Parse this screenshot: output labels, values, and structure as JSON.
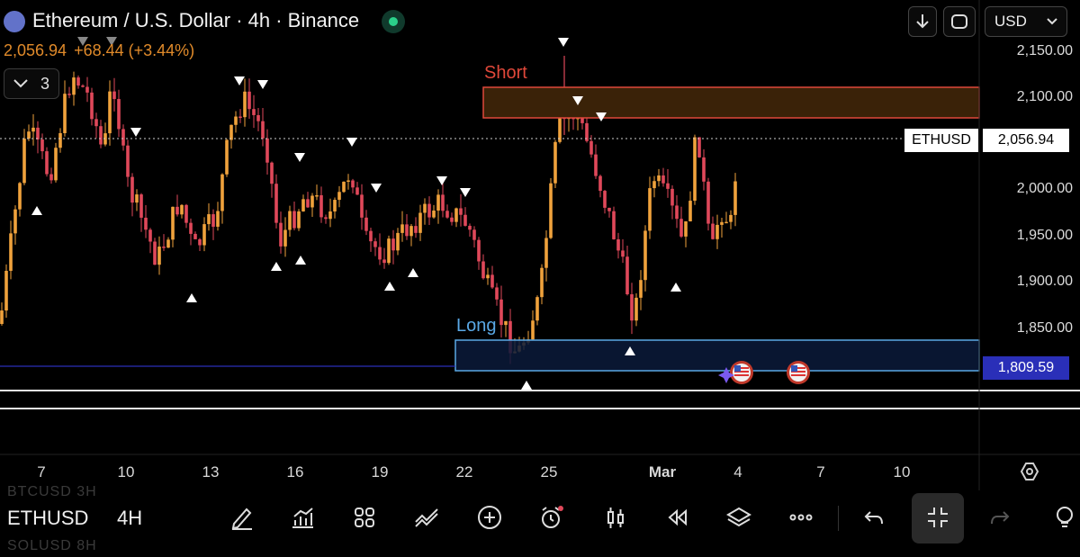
{
  "header": {
    "title": "Ethereum / U.S. Dollar · 4h · Binance",
    "last_price": "2,056.94",
    "change": "+68.44 (+3.44%)",
    "indicator_count": "3",
    "currency": "USD"
  },
  "price_axis": {
    "ticks": [
      "2,150.00",
      "2,100.00",
      "2,000.00",
      "1,950.00",
      "1,900.00",
      "1,850.00"
    ],
    "current_symbol": "ETHUSD",
    "current_price": "2,056.94",
    "line_price": "1,809.59",
    "line_price_color": "#2a2fb8"
  },
  "time_axis": {
    "labels": [
      "7",
      "10",
      "13",
      "16",
      "19",
      "22",
      "25",
      "Mar",
      "4",
      "7",
      "10"
    ]
  },
  "zones": {
    "short_label": "Short",
    "long_label": "Long",
    "short_color": "#e0483a",
    "long_color": "#5aa9e6"
  },
  "colors": {
    "up_candle": "#f0a23c",
    "down_candle": "#e0485a",
    "background": "#000000"
  },
  "toolbar": {
    "symbol": "ETHUSD",
    "interval": "4H",
    "ghost_above": "BTCUSD    3H",
    "ghost_below": "SOLUSD    8H",
    "icons": [
      "draw-icon",
      "indicators-icon",
      "grid-icon",
      "trend-icon",
      "add-icon",
      "alert-icon",
      "candles-icon",
      "replay-icon",
      "layers-icon",
      "more-icon",
      "undo-icon",
      "collapse-icon",
      "redo-icon",
      "bulb-icon"
    ]
  }
}
